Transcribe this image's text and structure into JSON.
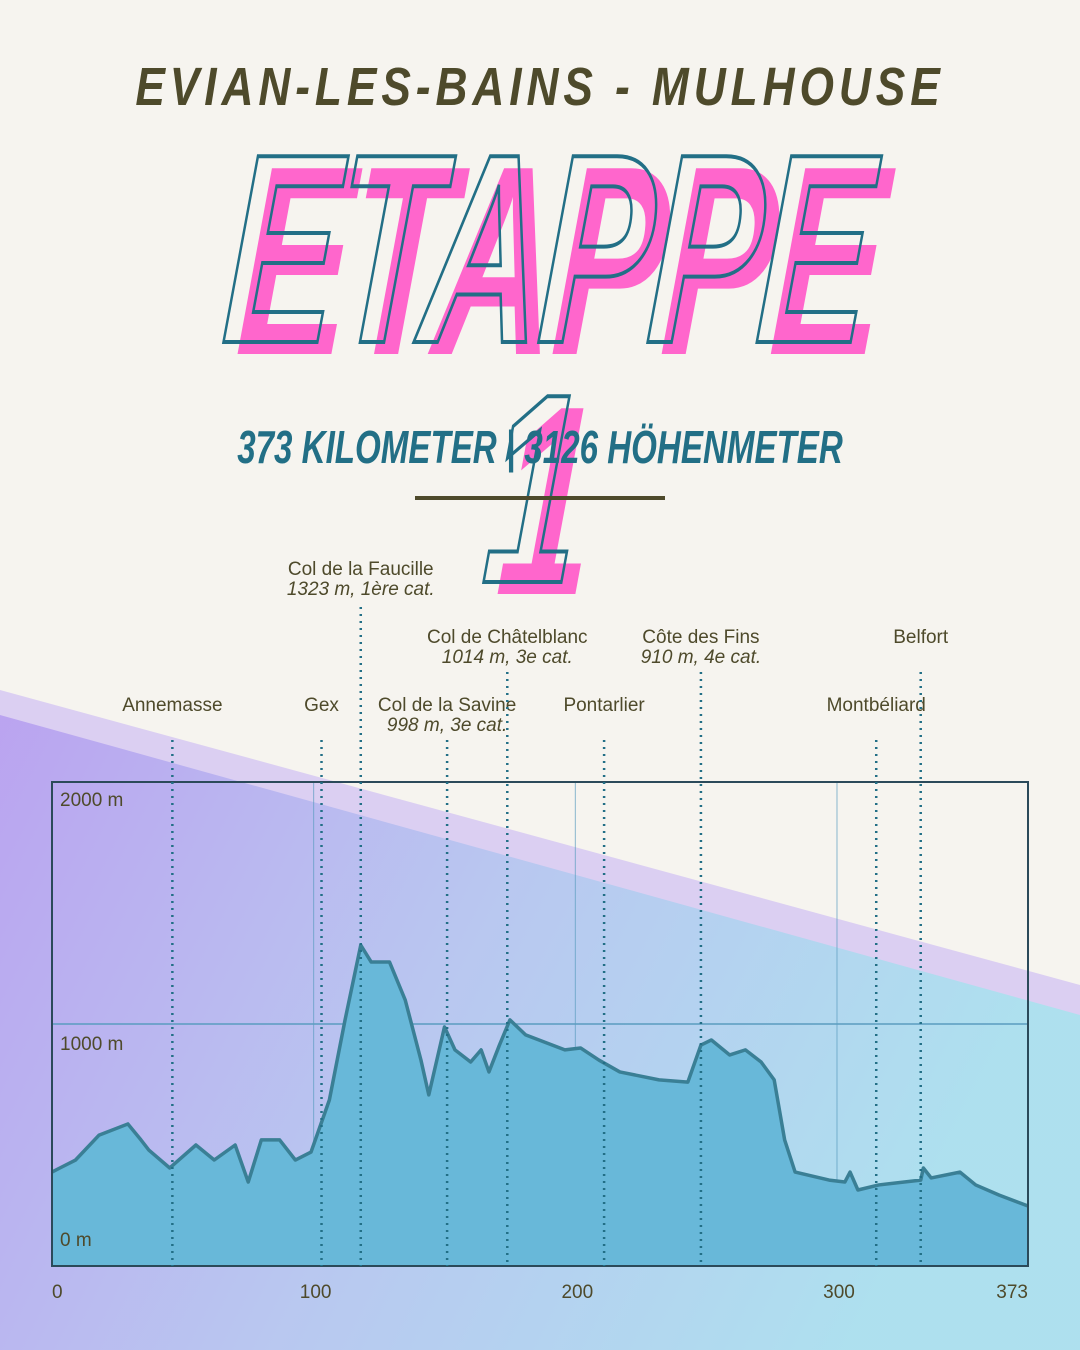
{
  "header": {
    "route": "EVIAN-LES-BAINS - MULHOUSE",
    "title": "ETAPPE 1",
    "stats": "373 KILOMETER | 3126 HÖHENMETER"
  },
  "colors": {
    "pink": "#ff66cc",
    "teal": "#226f86",
    "olive": "#4e4a2b",
    "area": "#68b8d9",
    "line": "#3a7f95"
  },
  "chart_data": {
    "type": "area",
    "xlabel": "",
    "ylabel": "",
    "xlim": [
      0,
      373
    ],
    "ylim": [
      0,
      2000
    ],
    "x_ticks": [
      {
        "v": 0,
        "label": "0"
      },
      {
        "v": 100,
        "label": "100"
      },
      {
        "v": 200,
        "label": "200"
      },
      {
        "v": 300,
        "label": "300"
      },
      {
        "v": 373,
        "label": "373"
      }
    ],
    "y_ticks": [
      {
        "v": 0,
        "label": "0 m"
      },
      {
        "v": 1000,
        "label": "1000 m"
      },
      {
        "v": 2000,
        "label": "2000 m"
      }
    ],
    "grid": true,
    "km": [
      0,
      3,
      9,
      18,
      29,
      34,
      37,
      45,
      55,
      62,
      70,
      75,
      80,
      87,
      93,
      99,
      106,
      112,
      118,
      122,
      129,
      135,
      141,
      144,
      150,
      154,
      160,
      164,
      167,
      171,
      175,
      181,
      188,
      196,
      202,
      209,
      217,
      232,
      243,
      248,
      252,
      259,
      265,
      271,
      276,
      280,
      284,
      297,
      303,
      305,
      308,
      316,
      332,
      333,
      336,
      347,
      353,
      362,
      373
    ],
    "elevation": [
      388,
      405,
      438,
      541,
      587,
      521,
      479,
      405,
      500,
      438,
      500,
      347,
      521,
      521,
      438,
      471,
      686,
      1017,
      1326,
      1256,
      1256,
      1099,
      851,
      707,
      988,
      893,
      843,
      893,
      802,
      913,
      1017,
      955,
      926,
      893,
      901,
      851,
      802,
      769,
      760,
      913,
      934,
      872,
      893,
      843,
      769,
      521,
      388,
      355,
      347,
      388,
      314,
      335,
      355,
      405,
      364,
      388,
      335,
      293,
      248
    ],
    "markers": [
      {
        "km": 46,
        "name": "Annemasse",
        "detail": "",
        "row": 3
      },
      {
        "km": 103,
        "name": "Gex",
        "detail": "",
        "row": 3
      },
      {
        "km": 118,
        "name": "Col de la Faucille",
        "detail": "1323 m, 1ère cat.",
        "row": 1
      },
      {
        "km": 151,
        "name": "Col de la Savine",
        "detail": "998 m, 3e cat.",
        "row": 3
      },
      {
        "km": 174,
        "name": "Col de Châtelblanc",
        "detail": "1014 m, 3e cat.",
        "row": 2
      },
      {
        "km": 211,
        "name": "Pontarlier",
        "detail": "",
        "row": 3
      },
      {
        "km": 248,
        "name": "Côte des Fins",
        "detail": "910 m, 4e cat.",
        "row": 2
      },
      {
        "km": 315,
        "name": "Montbéliard",
        "detail": "",
        "row": 3
      },
      {
        "km": 332,
        "name": "Belfort",
        "detail": "",
        "row": 2
      }
    ]
  }
}
